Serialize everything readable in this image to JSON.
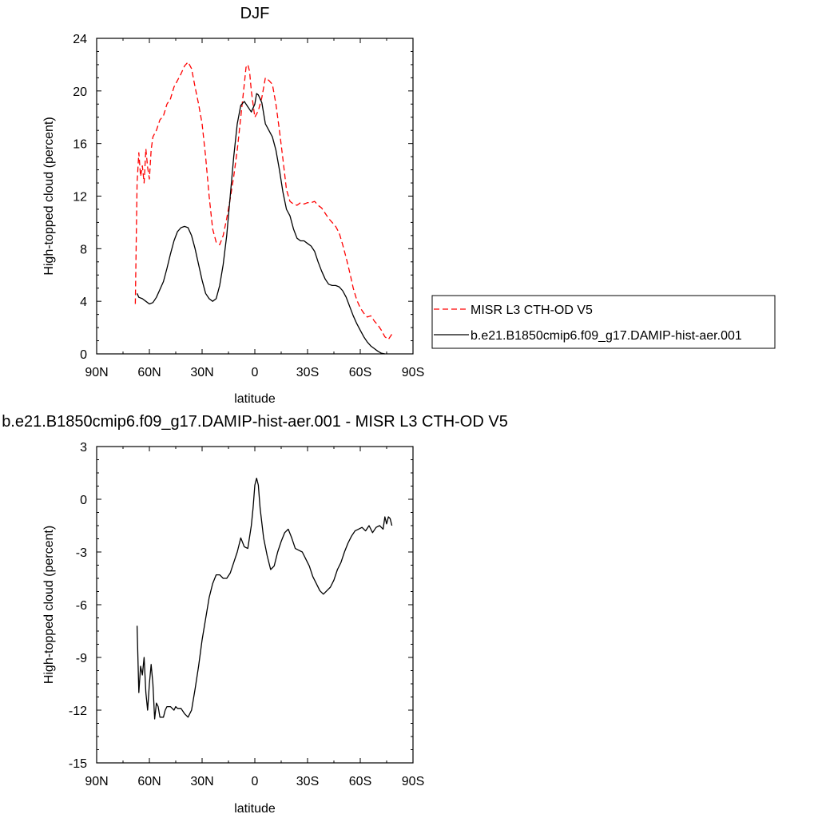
{
  "chart_data": [
    {
      "type": "line",
      "title": "DJF",
      "xlabel": "latitude",
      "ylabel": "High-topped cloud (percent)",
      "xlim": [
        90,
        -90
      ],
      "ylim": [
        0,
        24
      ],
      "xticks": [
        {
          "value": 90,
          "label": "90N"
        },
        {
          "value": 60,
          "label": "60N"
        },
        {
          "value": 30,
          "label": "30N"
        },
        {
          "value": 0,
          "label": "0"
        },
        {
          "value": -30,
          "label": "30S"
        },
        {
          "value": -60,
          "label": "60S"
        },
        {
          "value": -90,
          "label": "90S"
        }
      ],
      "yticks": [
        0,
        4,
        8,
        12,
        16,
        20,
        24
      ],
      "yticklabels": [
        "0",
        "4",
        "8",
        "12",
        "16",
        "20",
        "24"
      ],
      "grid": false,
      "legend_position": "right",
      "series": [
        {
          "name": "MISR L3 CTH-OD V5",
          "color": "#ff0000",
          "dash": "dashed",
          "points": [
            [
              68,
              3.8
            ],
            [
              67,
              13
            ],
            [
              66,
              15.3
            ],
            [
              65,
              13.5
            ],
            [
              64,
              14.3
            ],
            [
              63,
              13.0
            ],
            [
              62,
              15.6
            ],
            [
              61,
              14.2
            ],
            [
              60,
              13.3
            ],
            [
              59,
              15.5
            ],
            [
              58,
              16.5
            ],
            [
              56,
              17
            ],
            [
              54,
              17.8
            ],
            [
              52,
              18.1
            ],
            [
              50,
              19
            ],
            [
              48,
              19.4
            ],
            [
              46,
              20.3
            ],
            [
              44,
              20.8
            ],
            [
              42,
              21.3
            ],
            [
              40,
              21.9
            ],
            [
              38,
              22.2
            ],
            [
              36,
              21.7
            ],
            [
              34,
              20.3
            ],
            [
              32,
              19
            ],
            [
              30,
              17.5
            ],
            [
              28,
              15
            ],
            [
              26,
              12
            ],
            [
              24,
              9.5
            ],
            [
              22,
              8.5
            ],
            [
              20,
              8.3
            ],
            [
              18,
              9
            ],
            [
              16,
              10.3
            ],
            [
              14,
              11.8
            ],
            [
              12,
              13.5
            ],
            [
              10,
              15.5
            ],
            [
              8,
              18
            ],
            [
              6,
              20.5
            ],
            [
              5,
              21.8
            ],
            [
              4,
              22
            ],
            [
              3,
              21.5
            ],
            [
              2,
              20
            ],
            [
              0,
              18
            ],
            [
              -2,
              18.5
            ],
            [
              -4,
              19.5
            ],
            [
              -6,
              21
            ],
            [
              -8,
              20.8
            ],
            [
              -10,
              20.5
            ],
            [
              -12,
              19
            ],
            [
              -14,
              17
            ],
            [
              -16,
              14.8
            ],
            [
              -18,
              12.5
            ],
            [
              -20,
              11.6
            ],
            [
              -22,
              11.4
            ],
            [
              -24,
              11.3
            ],
            [
              -26,
              11.5
            ],
            [
              -28,
              11.4
            ],
            [
              -30,
              11.5
            ],
            [
              -32,
              11.5
            ],
            [
              -34,
              11.6
            ],
            [
              -36,
              11.3
            ],
            [
              -38,
              11.1
            ],
            [
              -40,
              10.7
            ],
            [
              -42,
              10.3
            ],
            [
              -44,
              10
            ],
            [
              -46,
              9.7
            ],
            [
              -48,
              9.2
            ],
            [
              -50,
              8.3
            ],
            [
              -52,
              7.3
            ],
            [
              -54,
              6.2
            ],
            [
              -56,
              5
            ],
            [
              -58,
              4.1
            ],
            [
              -60,
              3.5
            ],
            [
              -62,
              3.1
            ],
            [
              -64,
              2.8
            ],
            [
              -66,
              2.9
            ],
            [
              -68,
              2.5
            ],
            [
              -70,
              2.2
            ],
            [
              -72,
              1.8
            ],
            [
              -74,
              1.3
            ],
            [
              -76,
              1.1
            ],
            [
              -78,
              1.5
            ]
          ]
        },
        {
          "name": "b.e21.B1850cmip6.f09_g17.DAMIP-hist-aer.001",
          "color": "#000000",
          "dash": "solid",
          "points": [
            [
              67,
              4.6
            ],
            [
              66,
              4.3
            ],
            [
              64,
              4.2
            ],
            [
              62,
              4.0
            ],
            [
              60,
              3.8
            ],
            [
              58,
              3.9
            ],
            [
              56,
              4.3
            ],
            [
              54,
              4.9
            ],
            [
              52,
              5.5
            ],
            [
              50,
              6.5
            ],
            [
              48,
              7.6
            ],
            [
              46,
              8.6
            ],
            [
              44,
              9.3
            ],
            [
              42,
              9.6
            ],
            [
              40,
              9.7
            ],
            [
              38,
              9.6
            ],
            [
              36,
              9.0
            ],
            [
              34,
              8.0
            ],
            [
              32,
              6.8
            ],
            [
              30,
              5.6
            ],
            [
              28,
              4.6
            ],
            [
              26,
              4.2
            ],
            [
              24,
              4.0
            ],
            [
              22,
              4.2
            ],
            [
              20,
              5.2
            ],
            [
              18,
              6.8
            ],
            [
              16,
              9
            ],
            [
              14,
              12
            ],
            [
              12,
              15
            ],
            [
              10,
              17.5
            ],
            [
              8,
              18.9
            ],
            [
              6,
              19.2
            ],
            [
              4,
              18.8
            ],
            [
              2,
              18.4
            ],
            [
              0,
              19.0
            ],
            [
              -1,
              19.8
            ],
            [
              -2,
              19.7
            ],
            [
              -4,
              19.1
            ],
            [
              -6,
              17.5
            ],
            [
              -8,
              17.0
            ],
            [
              -10,
              16.5
            ],
            [
              -12,
              15.5
            ],
            [
              -14,
              14
            ],
            [
              -16,
              12.3
            ],
            [
              -18,
              11
            ],
            [
              -20,
              10.5
            ],
            [
              -22,
              9.5
            ],
            [
              -24,
              8.8
            ],
            [
              -26,
              8.6
            ],
            [
              -28,
              8.6
            ],
            [
              -30,
              8.4
            ],
            [
              -32,
              8.2
            ],
            [
              -34,
              7.8
            ],
            [
              -36,
              7
            ],
            [
              -38,
              6.3
            ],
            [
              -40,
              5.7
            ],
            [
              -42,
              5.3
            ],
            [
              -44,
              5.2
            ],
            [
              -46,
              5.2
            ],
            [
              -48,
              5.1
            ],
            [
              -50,
              4.8
            ],
            [
              -52,
              4.3
            ],
            [
              -54,
              3.6
            ],
            [
              -56,
              2.9
            ],
            [
              -58,
              2.3
            ],
            [
              -60,
              1.8
            ],
            [
              -62,
              1.3
            ],
            [
              -64,
              0.9
            ],
            [
              -66,
              0.6
            ],
            [
              -68,
              0.4
            ],
            [
              -70,
              0.2
            ],
            [
              -72,
              0.05
            ],
            [
              -74,
              0
            ]
          ]
        }
      ]
    },
    {
      "type": "line",
      "title": "b.e21.B1850cmip6.f09_g17.DAMIP-hist-aer.001 - MISR L3 CTH-OD V5",
      "xlabel": "latitude",
      "ylabel": "High-topped cloud (percent)",
      "xlim": [
        90,
        -90
      ],
      "ylim": [
        -15,
        3
      ],
      "xticks": [
        {
          "value": 90,
          "label": "90N"
        },
        {
          "value": 60,
          "label": "60N"
        },
        {
          "value": 30,
          "label": "30N"
        },
        {
          "value": 0,
          "label": "0"
        },
        {
          "value": -30,
          "label": "30S"
        },
        {
          "value": -60,
          "label": "60S"
        },
        {
          "value": -90,
          "label": "90S"
        }
      ],
      "yticks": [
        -15,
        -12,
        -9,
        -6,
        -3,
        0,
        3
      ],
      "yticklabels": [
        "-15",
        "-12",
        "-9",
        "-6",
        "-3",
        "0",
        "3"
      ],
      "grid": false,
      "series": [
        {
          "color": "#000000",
          "dash": "solid",
          "points": [
            [
              67,
              -7.2
            ],
            [
              66,
              -11
            ],
            [
              65,
              -9.5
            ],
            [
              64,
              -10
            ],
            [
              63,
              -9
            ],
            [
              62,
              -11
            ],
            [
              61,
              -12
            ],
            [
              60,
              -10.5
            ],
            [
              59,
              -9.4
            ],
            [
              58,
              -10.5
            ],
            [
              57,
              -12.5
            ],
            [
              56,
              -11.6
            ],
            [
              55,
              -11.8
            ],
            [
              54,
              -12.4
            ],
            [
              52,
              -12.4
            ],
            [
              51,
              -12
            ],
            [
              50,
              -11.8
            ],
            [
              48,
              -11.8
            ],
            [
              46,
              -12
            ],
            [
              45,
              -11.8
            ],
            [
              44,
              -11.9
            ],
            [
              42,
              -11.9
            ],
            [
              40,
              -12.2
            ],
            [
              38,
              -12.4
            ],
            [
              36,
              -12
            ],
            [
              34,
              -10.8
            ],
            [
              32,
              -9.5
            ],
            [
              30,
              -8
            ],
            [
              28,
              -6.8
            ],
            [
              26,
              -5.6
            ],
            [
              24,
              -4.8
            ],
            [
              22,
              -4.3
            ],
            [
              20,
              -4.3
            ],
            [
              18,
              -4.5
            ],
            [
              16,
              -4.5
            ],
            [
              14,
              -4.2
            ],
            [
              12,
              -3.6
            ],
            [
              10,
              -3.0
            ],
            [
              8,
              -2.2
            ],
            [
              6,
              -2.7
            ],
            [
              4,
              -2.8
            ],
            [
              2,
              -1.5
            ],
            [
              1,
              -0.5
            ],
            [
              0,
              0.8
            ],
            [
              -1,
              1.2
            ],
            [
              -2,
              0.8
            ],
            [
              -3,
              -0.5
            ],
            [
              -5,
              -2.2
            ],
            [
              -7,
              -3.2
            ],
            [
              -9,
              -4.0
            ],
            [
              -11,
              -3.8
            ],
            [
              -13,
              -3.0
            ],
            [
              -15,
              -2.4
            ],
            [
              -17,
              -1.9
            ],
            [
              -19,
              -1.7
            ],
            [
              -21,
              -2.2
            ],
            [
              -23,
              -2.8
            ],
            [
              -25,
              -2.9
            ],
            [
              -27,
              -3.0
            ],
            [
              -29,
              -3.4
            ],
            [
              -31,
              -3.8
            ],
            [
              -33,
              -4.4
            ],
            [
              -35,
              -4.8
            ],
            [
              -37,
              -5.2
            ],
            [
              -39,
              -5.4
            ],
            [
              -41,
              -5.2
            ],
            [
              -43,
              -5.0
            ],
            [
              -45,
              -4.6
            ],
            [
              -47,
              -4.0
            ],
            [
              -49,
              -3.6
            ],
            [
              -51,
              -3.0
            ],
            [
              -53,
              -2.5
            ],
            [
              -55,
              -2.1
            ],
            [
              -57,
              -1.8
            ],
            [
              -59,
              -1.7
            ],
            [
              -61,
              -1.6
            ],
            [
              -63,
              -1.8
            ],
            [
              -65,
              -1.5
            ],
            [
              -67,
              -1.9
            ],
            [
              -69,
              -1.6
            ],
            [
              -71,
              -1.5
            ],
            [
              -73,
              -1.7
            ],
            [
              -74,
              -1.0
            ],
            [
              -75,
              -1.4
            ],
            [
              -76,
              -1.0
            ],
            [
              -77,
              -1.1
            ],
            [
              -78,
              -1.5
            ]
          ]
        }
      ]
    }
  ]
}
